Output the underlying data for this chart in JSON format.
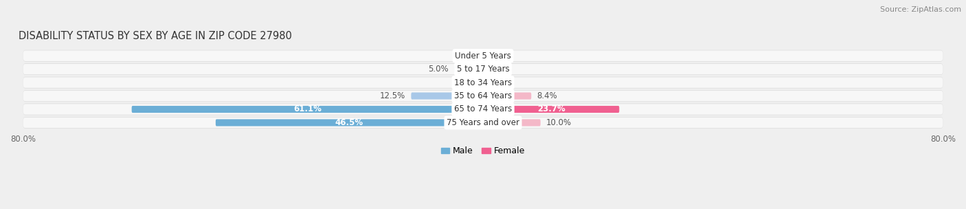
{
  "title": "DISABILITY STATUS BY SEX BY AGE IN ZIP CODE 27980",
  "source": "Source: ZipAtlas.com",
  "categories": [
    "Under 5 Years",
    "5 to 17 Years",
    "18 to 34 Years",
    "35 to 64 Years",
    "65 to 74 Years",
    "75 Years and over"
  ],
  "male_values": [
    0.0,
    5.0,
    0.0,
    12.5,
    61.1,
    46.5
  ],
  "female_values": [
    0.0,
    0.0,
    0.0,
    8.4,
    23.7,
    10.0
  ],
  "male_color_light": "#a8c8e8",
  "male_color_dark": "#6baed6",
  "female_color_light": "#f4b8c8",
  "female_color_dark": "#f06090",
  "male_label": "Male",
  "female_label": "Female",
  "xlim": 80.0,
  "bar_height": 0.52,
  "bg_color": "#efefef",
  "row_bg_outer": "#e0e0e0",
  "row_bg_inner": "#f5f5f5",
  "title_fontsize": 10.5,
  "label_fontsize": 8.5,
  "tick_fontsize": 8.5,
  "source_fontsize": 8,
  "inside_label_color": "#ffffff",
  "outside_label_color": "#555555"
}
